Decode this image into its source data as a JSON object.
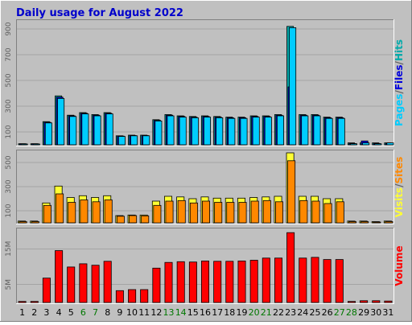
{
  "chart_data": {
    "type": "bar",
    "title": "Daily usage for August 2022",
    "x": [
      "1",
      "2",
      "3",
      "4",
      "5",
      "6",
      "7",
      "8",
      "9",
      "10",
      "11",
      "12",
      "13",
      "14",
      "15",
      "16",
      "17",
      "18",
      "19",
      "20",
      "21",
      "22",
      "23",
      "24",
      "25",
      "26",
      "27",
      "28",
      "29",
      "30",
      "31"
    ],
    "weekend_days": [
      "6",
      "7",
      "13",
      "14",
      "20",
      "21",
      "27",
      "28"
    ],
    "colors": {
      "background": "#c0c0c0",
      "plot_bg": "#c0c0c0",
      "title": "#0000cc",
      "hits": "#00aaaa",
      "files": "#0000dd",
      "pages": "#00ccff",
      "visits": "#ffff33",
      "sites": "#ff8800",
      "volume": "#ff0000",
      "weekend_label": "#007700"
    },
    "panels": [
      {
        "id": "pages-files-hits",
        "ylim": [
          0,
          950
        ],
        "yticks": [
          100,
          300,
          500,
          700,
          900
        ],
        "legend": [
          "Pages",
          "Files",
          "Hits"
        ],
        "series": [
          {
            "name": "Hits",
            "values": [
              8,
              8,
              180,
              380,
              230,
              250,
              235,
              250,
              70,
              75,
              75,
              195,
              235,
              225,
              220,
              225,
              220,
              215,
              215,
              225,
              225,
              235,
              920,
              235,
              235,
              215,
              215,
              15,
              15,
              15,
              15
            ]
          },
          {
            "name": "Files",
            "values": [
              8,
              8,
              175,
              370,
              225,
              245,
              230,
              245,
              68,
              72,
              72,
              190,
              230,
              220,
              215,
              220,
              215,
              210,
              210,
              220,
              220,
              230,
              450,
              230,
              230,
              210,
              210,
              10,
              30,
              10,
              10
            ]
          },
          {
            "name": "Pages",
            "values": [
              6,
              6,
              170,
              360,
              220,
              240,
              225,
              240,
              65,
              70,
              70,
              185,
              225,
              215,
              210,
              215,
              210,
              205,
              205,
              215,
              215,
              225,
              910,
              225,
              225,
              205,
              205,
              8,
              15,
              8,
              15
            ]
          }
        ]
      },
      {
        "id": "visits-sites",
        "ylim": [
          0,
          580
        ],
        "yticks": [
          100,
          300,
          500
        ],
        "legend": [
          "Visits",
          "Sites"
        ],
        "series": [
          {
            "name": "Visits",
            "values": [
              15,
              15,
              165,
              305,
              210,
              225,
              210,
              225,
              60,
              65,
              65,
              180,
              220,
              215,
              200,
              215,
              205,
              205,
              205,
              210,
              215,
              220,
              580,
              220,
              220,
              200,
              200,
              15,
              15,
              10,
              15
            ]
          },
          {
            "name": "Sites",
            "values": [
              10,
              10,
              145,
              240,
              170,
              190,
              175,
              190,
              55,
              60,
              58,
              145,
              180,
              185,
              165,
              180,
              170,
              170,
              170,
              180,
              185,
              175,
              515,
              185,
              180,
              160,
              175,
              10,
              10,
              5,
              10
            ]
          }
        ]
      },
      {
        "id": "volume",
        "ylim": [
          0,
          20
        ],
        "yticks": [
          5,
          15
        ],
        "ytick_labels": [
          "5M",
          "15M"
        ],
        "legend": [
          "Volume"
        ],
        "series": [
          {
            "name": "Volume",
            "values": [
              0.3,
              0.3,
              6.8,
              14.5,
              9.9,
              10.8,
              10.4,
              11.5,
              3.3,
              3.6,
              3.6,
              9.6,
              11.2,
              11.4,
              11.3,
              11.6,
              11.5,
              11.5,
              11.6,
              11.8,
              12.4,
              12.4,
              19.5,
              12.4,
              12.6,
              12.0,
              12.0,
              0.3,
              0.5,
              0.5,
              0.4
            ]
          }
        ]
      }
    ]
  }
}
